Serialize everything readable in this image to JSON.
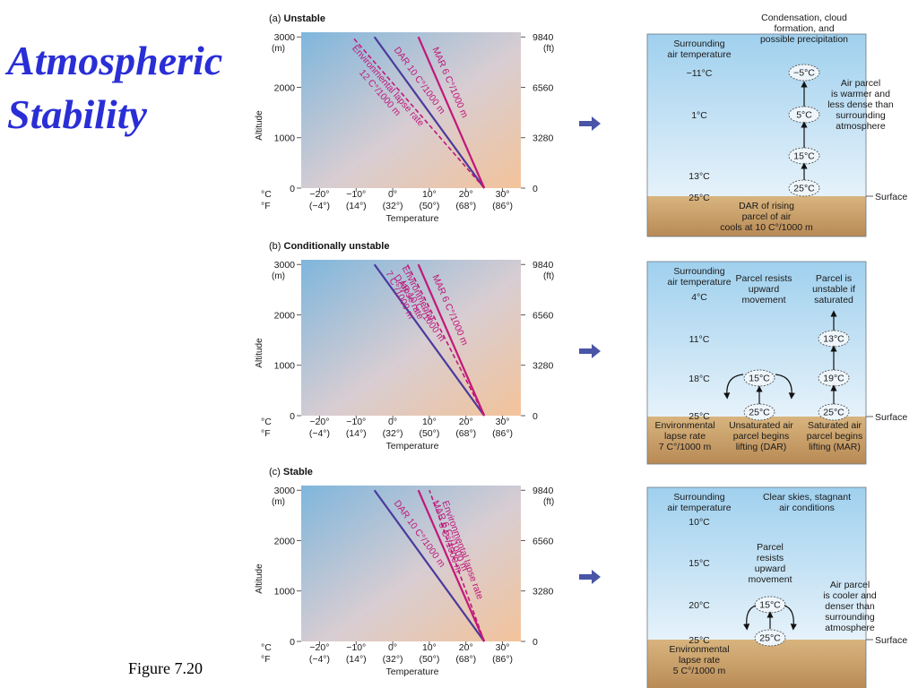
{
  "title": {
    "line1": "Atmospheric",
    "line2": "Stability"
  },
  "figure_label": "Figure  7.20",
  "axes": {
    "m_unit": "(m)",
    "ft_unit": "(ft)",
    "ylabel": "Altitude",
    "xlabel": "Temperature",
    "alt_ticks_m": [
      "3000",
      "2000",
      "1000",
      "0"
    ],
    "alt_ticks_ft": [
      "9840",
      "6560",
      "3280",
      "0"
    ],
    "celsius_label": "°C",
    "fahrenheit_label": "°F",
    "temp_ticks_c": [
      "−20°",
      "−10°",
      "0°",
      "10°",
      "20°",
      "30°"
    ],
    "temp_ticks_f": [
      "(−4°)",
      "(14°)",
      "(32°)",
      "(50°)",
      "(68°)",
      "(86°)"
    ]
  },
  "colors": {
    "dar": "#4a3a9c",
    "mar": "#c0187a",
    "elr": "#c0187a",
    "title": "#2a2ed6"
  },
  "panels": [
    {
      "label_letter": "(a)",
      "label": "Unstable",
      "lines": {
        "dar": "DAR 10 C°/1000 m",
        "mar": "MAR 6 C°/1000 m",
        "elr_1": "Environmental lapse rate",
        "elr_2": "12 C°/1000 m"
      },
      "chart_data": {
        "type": "line",
        "xlabel": "Temperature",
        "ylabel": "Altitude",
        "xlim": [
          -25,
          35
        ],
        "ylim": [
          0,
          3000
        ],
        "series": [
          {
            "name": "DAR 10 C°/1000 m",
            "x": [
              25,
              -5
            ],
            "y": [
              0,
              3000
            ]
          },
          {
            "name": "MAR 6 C°/1000 m",
            "x": [
              25,
              7
            ],
            "y": [
              0,
              3000
            ]
          },
          {
            "name": "Environmental lapse rate 12 C°/1000 m",
            "x": [
              25,
              -11
            ],
            "y": [
              0,
              3000
            ]
          }
        ]
      },
      "diagram": {
        "top_note_1": "Condensation, cloud",
        "top_note_2": "formation, and",
        "top_note_3": "possible precipitation",
        "surrounding_1": "Surrounding",
        "surrounding_2": "air temperature",
        "air_temps": [
          "−11°C",
          "1°C",
          "13°C",
          "25°C"
        ],
        "parcel_temps": [
          "−5°C",
          "5°C",
          "15°C",
          "25°C"
        ],
        "side_note": [
          "Air parcel",
          "is warmer and",
          "less dense than",
          "surrounding",
          "atmosphere"
        ],
        "bottom_note": [
          "DAR of rising",
          "parcel of air",
          "cools at 10 C°/1000 m"
        ],
        "surface": "Surface"
      }
    },
    {
      "label_letter": "(b)",
      "label": "Conditionally unstable",
      "lines": {
        "dar": "DAR 10 C°/1000 m",
        "mar": "MAR 6 C°/1000 m",
        "elr_1": "Environmental",
        "elr_2": "lapse rate",
        "elr_3": "7 C°/1000 m"
      },
      "chart_data": {
        "type": "line",
        "xlabel": "Temperature",
        "ylabel": "Altitude",
        "xlim": [
          -25,
          35
        ],
        "ylim": [
          0,
          3000
        ],
        "series": [
          {
            "name": "DAR 10 C°/1000 m",
            "x": [
              25,
              -5
            ],
            "y": [
              0,
              3000
            ]
          },
          {
            "name": "MAR 6 C°/1000 m",
            "x": [
              25,
              7
            ],
            "y": [
              0,
              3000
            ]
          },
          {
            "name": "Environmental lapse rate 7 C°/1000 m",
            "x": [
              25,
              4
            ],
            "y": [
              0,
              3000
            ]
          }
        ]
      },
      "diagram": {
        "surrounding_1": "Surrounding",
        "surrounding_2": "air temperature",
        "air_temps": [
          "4°C",
          "11°C",
          "18°C",
          "25°C"
        ],
        "middle_note": [
          "Parcel resists",
          "upward",
          "movement"
        ],
        "right_note": [
          "Parcel is",
          "unstable if",
          "saturated"
        ],
        "left_parcels": [
          "15°C",
          "25°C"
        ],
        "right_parcels": [
          "13°C",
          "19°C",
          "25°C"
        ],
        "bottom_left": [
          "Environmental",
          "lapse rate",
          "7 C°/1000 m"
        ],
        "bottom_mid": [
          "Unsaturated air",
          "parcel begins",
          "lifting (DAR)"
        ],
        "bottom_right": [
          "Saturated air",
          "parcel begins",
          "lifting (MAR)"
        ],
        "surface": "Surface"
      }
    },
    {
      "label_letter": "(c)",
      "label": "Stable",
      "lines": {
        "dar": "DAR 10 C°/1000 m",
        "mar": "MAR 6 C°/1000 m",
        "elr_1": "Environmental lapse rate",
        "elr_2": "5 C°/1000 m"
      },
      "chart_data": {
        "type": "line",
        "xlabel": "Temperature",
        "ylabel": "Altitude",
        "xlim": [
          -25,
          35
        ],
        "ylim": [
          0,
          3000
        ],
        "series": [
          {
            "name": "DAR 10 C°/1000 m",
            "x": [
              25,
              -5
            ],
            "y": [
              0,
              3000
            ]
          },
          {
            "name": "MAR 6 C°/1000 m",
            "x": [
              25,
              7
            ],
            "y": [
              0,
              3000
            ]
          },
          {
            "name": "Environmental lapse rate 5 C°/1000 m",
            "x": [
              25,
              10
            ],
            "y": [
              0,
              3000
            ]
          }
        ]
      },
      "diagram": {
        "surrounding_1": "Surrounding",
        "surrounding_2": "air temperature",
        "top_note_1": "Clear skies, stagnant",
        "top_note_2": "air conditions",
        "air_temps": [
          "10°C",
          "15°C",
          "20°C",
          "25°C"
        ],
        "middle_note": [
          "Parcel",
          "resists",
          "upward",
          "movement"
        ],
        "parcels": [
          "15°C",
          "25°C"
        ],
        "side_note": [
          "Air parcel",
          "is cooler and",
          "denser than",
          "surrounding",
          "atmosphere"
        ],
        "bottom_note": [
          "Environmental",
          "lapse rate",
          "5 C°/1000 m"
        ],
        "surface": "Surface"
      }
    }
  ]
}
